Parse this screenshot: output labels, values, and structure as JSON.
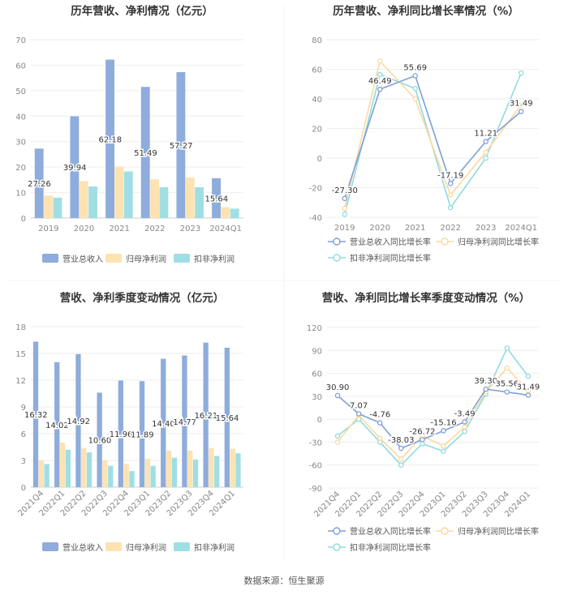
{
  "footer": "数据来源：恒生聚源",
  "colors": {
    "rev_bar": "#8eacdc",
    "np_bar": "#fde2b2",
    "dnp_bar": "#9fdfe4",
    "rev_line": "#7f9fd4",
    "np_line": "#fcd9a0",
    "dnp_line": "#8fdbe0",
    "grid": "#eeeeee",
    "axis_text": "#888888",
    "title": "#333333"
  },
  "chart_data": [
    {
      "id": "annual-bar",
      "type": "bar",
      "title": "历年营收、净利情况（亿元）",
      "categories": [
        "2019",
        "2020",
        "2021",
        "2022",
        "2023",
        "2024Q1"
      ],
      "ylim": [
        0,
        70
      ],
      "yticks": [
        0,
        10,
        20,
        30,
        40,
        50,
        60,
        70
      ],
      "series": [
        {
          "name": "营业总收入",
          "values": [
            27.26,
            39.94,
            62.18,
            51.49,
            57.27,
            15.64
          ],
          "labeled": true
        },
        {
          "name": "归母净利润",
          "values": [
            8.8,
            14.5,
            20.2,
            15.2,
            15.9,
            4.3
          ],
          "labeled": false
        },
        {
          "name": "扣非净利润",
          "values": [
            8.0,
            12.4,
            18.3,
            12.1,
            12.1,
            3.7
          ],
          "labeled": false
        }
      ],
      "data_labels": [
        "27.26",
        "39.94",
        "62.18",
        "51.49",
        "57.27",
        "15.64"
      ]
    },
    {
      "id": "annual-growth-line",
      "type": "line",
      "title": "历年营收、净利同比增长率情况（%）",
      "categories": [
        "2019",
        "2020",
        "2021",
        "2022",
        "2023",
        "2024Q1"
      ],
      "ylim": [
        -40,
        80
      ],
      "yticks": [
        -40,
        -20,
        0,
        20,
        40,
        60,
        80
      ],
      "series": [
        {
          "name": "营业总收入同比增长率",
          "values": [
            -27.3,
            46.49,
            55.69,
            -17.19,
            11.21,
            31.49
          ],
          "labeled": true
        },
        {
          "name": "归母净利润同比增长率",
          "values": [
            -34,
            65.5,
            40,
            -25,
            4,
            36
          ],
          "labeled": false
        },
        {
          "name": "扣非净利润同比增长率",
          "values": [
            -38,
            56.5,
            47,
            -33.5,
            0,
            57.5
          ],
          "labeled": false
        }
      ],
      "data_labels": [
        "-27.30",
        "46.49",
        "55.69",
        "-17.19",
        "11.21",
        "31.49"
      ]
    },
    {
      "id": "quarterly-bar",
      "type": "bar",
      "title": "营收、净利季度变动情况（亿元）",
      "categories": [
        "2021Q4",
        "2022Q1",
        "2022Q2",
        "2022Q3",
        "2022Q4",
        "2023Q1",
        "2023Q2",
        "2023Q3",
        "2023Q4",
        "2024Q1"
      ],
      "ylim": [
        0,
        18
      ],
      "yticks": [
        0,
        3,
        6,
        9,
        12,
        15,
        18
      ],
      "series": [
        {
          "name": "营业总收入",
          "values": [
            16.32,
            14.02,
            14.92,
            10.6,
            11.96,
            11.89,
            14.4,
            14.77,
            16.21,
            15.64
          ],
          "labeled": true
        },
        {
          "name": "归母净利润",
          "values": [
            3.0,
            5.0,
            4.4,
            3.0,
            2.6,
            3.2,
            4.1,
            4.1,
            4.4,
            4.3
          ],
          "labeled": false
        },
        {
          "name": "扣非净利润",
          "values": [
            2.6,
            4.2,
            3.9,
            2.4,
            1.8,
            2.4,
            3.3,
            3.1,
            3.5,
            3.8
          ],
          "labeled": false
        }
      ],
      "data_labels": [
        "16.32",
        "14.02",
        "14.92",
        "10.60",
        "11.96",
        "11.89",
        "14.40",
        "14.77",
        "16.21",
        "15.64"
      ]
    },
    {
      "id": "quarterly-growth-line",
      "type": "line",
      "title": "营收、净利同比增长率季度变动情况（%）",
      "categories": [
        "2021Q4",
        "2022Q1",
        "2022Q2",
        "2022Q3",
        "2022Q4",
        "2023Q1",
        "2023Q2",
        "2023Q3",
        "2023Q4",
        "2024Q1"
      ],
      "ylim": [
        -90,
        120
      ],
      "yticks": [
        -90,
        -60,
        -30,
        0,
        30,
        60,
        90,
        120
      ],
      "series": [
        {
          "name": "营业总收入同比增长率",
          "values": [
            30.9,
            7.07,
            -4.76,
            -38.03,
            -26.72,
            -15.16,
            -3.49,
            39.3,
            35.56,
            31.49
          ],
          "labeled": true
        },
        {
          "name": "归母净利润同比增长率",
          "values": [
            -30,
            5,
            -25,
            -52,
            -22,
            -35,
            -10,
            36,
            67,
            37
          ],
          "labeled": false
        },
        {
          "name": "扣非净利润同比增长率",
          "values": [
            -22,
            0,
            -30,
            -60,
            -32,
            -42,
            -16,
            33,
            93,
            56
          ],
          "labeled": false
        }
      ],
      "data_labels": [
        "30.90",
        "7.07",
        "-4.76",
        "-38.03",
        "-26.72",
        "-15.16",
        "-3.49",
        "39.30",
        "35.56",
        "31.49"
      ]
    }
  ]
}
